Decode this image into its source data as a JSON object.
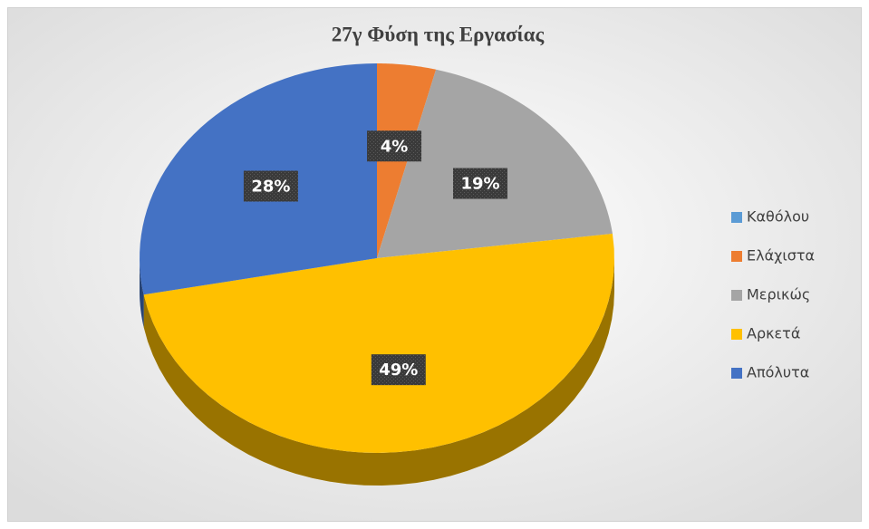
{
  "chart_data": {
    "type": "pie",
    "title": "27γ Φύση της Εργασίας",
    "categories": [
      "Καθόλου",
      "Ελάχιστα",
      "Μερικώς",
      "Αρκετά",
      "Απόλυτα"
    ],
    "values": [
      0,
      4,
      19,
      49,
      28
    ],
    "value_labels": [
      null,
      "4%",
      "19%",
      "49%",
      "28%"
    ],
    "colors": [
      "#5b9bd5",
      "#ed7d31",
      "#a5a5a5",
      "#ffc000",
      "#4472c4"
    ],
    "legend": "right"
  }
}
